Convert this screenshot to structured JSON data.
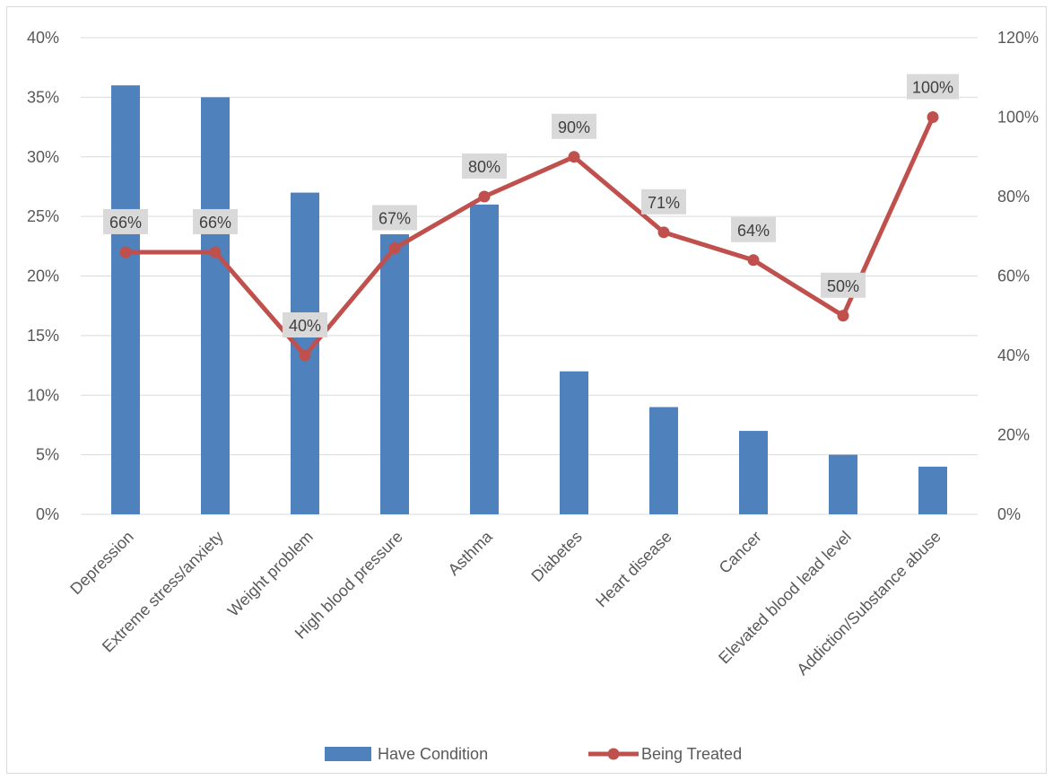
{
  "chart_data": {
    "type": "bar",
    "categories": [
      "Depression",
      "Extreme stress/anxiety",
      "Weight problem",
      "High blood pressure",
      "Asthma",
      "Diabetes",
      "Heart disease",
      "Cancer",
      "Elevated blood lead level",
      "Addiction/Substance abuse"
    ],
    "series": [
      {
        "name": "Have Condition",
        "type": "bar",
        "axis": "left",
        "color": "#4f81bd",
        "values": [
          36,
          35,
          27,
          23.5,
          26,
          12,
          9,
          7,
          5,
          4
        ]
      },
      {
        "name": "Being Treated",
        "type": "line",
        "axis": "right",
        "color": "#c0504d",
        "values": [
          66,
          66,
          40,
          67,
          80,
          90,
          71,
          64,
          50,
          100
        ],
        "labels": [
          "66%",
          "66%",
          "40%",
          "67%",
          "80%",
          "90%",
          "71%",
          "64%",
          "50%",
          "100%"
        ]
      }
    ],
    "y_left": {
      "ylim": [
        0,
        40
      ],
      "ticks": [
        0,
        5,
        10,
        15,
        20,
        25,
        30,
        35,
        40
      ],
      "tick_labels": [
        "0%",
        "5%",
        "10%",
        "15%",
        "20%",
        "25%",
        "30%",
        "35%",
        "40%"
      ]
    },
    "y_right": {
      "ylim": [
        0,
        120
      ],
      "ticks": [
        0,
        20,
        40,
        60,
        80,
        100,
        120
      ],
      "tick_labels": [
        "0%",
        "20%",
        "40%",
        "60%",
        "80%",
        "100%",
        "120%"
      ]
    },
    "grid": true,
    "legend": {
      "placement": "bottom",
      "entries": [
        "Have Condition",
        "Being Treated"
      ]
    },
    "title": "",
    "xlabel": "",
    "ylabel": ""
  }
}
